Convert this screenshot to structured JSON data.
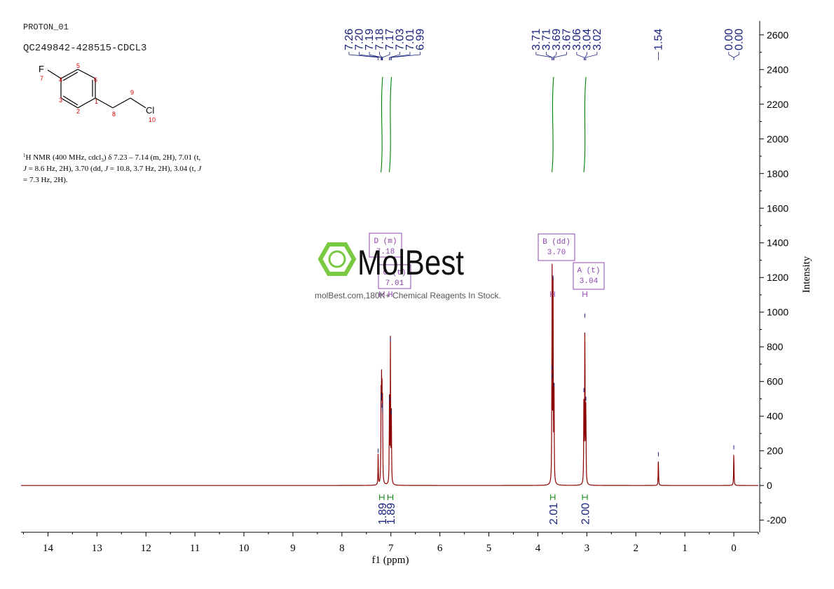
{
  "header": {
    "experiment": "PROTON_01",
    "sample": "QC249842-428515-CDCL3"
  },
  "structure": {
    "atoms": [
      {
        "symbol": "F",
        "number": "7"
      },
      {
        "symbol": "Cl",
        "number": "10"
      }
    ],
    "locants": [
      "1",
      "2",
      "3",
      "4",
      "5",
      "6",
      "8",
      "9"
    ]
  },
  "nmr_summary": {
    "line1": "H NMR (400 MHz, cdcl",
    "line1_sup": "1",
    "line1_sub": "3",
    "line1_rest": ") δ 7.23 – 7.14 (m, 2H), 7.01 (t,",
    "line2_j": "J",
    "line2": " = 8.6 Hz, 2H), 3.70 (dd, ",
    "line2_j2": "J",
    "line2_rest": " = 10.8, 3.7 Hz, 2H), 3.04 (t, ",
    "line2_j3": "J",
    "line3": "= 7.3 Hz, 2H)."
  },
  "watermark": {
    "brand": "MolBest",
    "tagline": "molBest.com,180K+ Chemical Reagents In Stock."
  },
  "colors": {
    "spectrum": "#8b0000",
    "integral": "#008000",
    "peak_label": "#1a237e",
    "multiplet_box": "#8e44ad",
    "axis": "#000000",
    "watermark_green": "#7ac943"
  },
  "chart_data": {
    "type": "line",
    "xlabel": "f1 (ppm)",
    "ylabel": "Intensity",
    "xlim": [
      14.55,
      -0.5
    ],
    "ylim": [
      -270,
      2680
    ],
    "x_ticks": [
      14,
      13,
      12,
      11,
      10,
      9,
      8,
      7,
      6,
      5,
      4,
      3,
      2,
      1,
      0
    ],
    "y_ticks": [
      -200,
      0,
      200,
      400,
      600,
      800,
      1000,
      1200,
      1400,
      1600,
      1800,
      2000,
      2200,
      2400,
      2600
    ],
    "peaks": [
      {
        "ppm": 7.26,
        "height": 180
      },
      {
        "ppm": 7.2,
        "height": 480
      },
      {
        "ppm": 7.19,
        "height": 500
      },
      {
        "ppm": 7.18,
        "height": 440
      },
      {
        "ppm": 7.17,
        "height": 420
      },
      {
        "ppm": 7.03,
        "height": 480
      },
      {
        "ppm": 7.01,
        "height": 820
      },
      {
        "ppm": 6.99,
        "height": 400
      },
      {
        "ppm": 3.71,
        "height": 610
      },
      {
        "ppm": 3.71,
        "height": 660
      },
      {
        "ppm": 3.69,
        "height": 1180
      },
      {
        "ppm": 3.67,
        "height": 560
      },
      {
        "ppm": 3.06,
        "height": 530
      },
      {
        "ppm": 3.04,
        "height": 960
      },
      {
        "ppm": 3.02,
        "height": 480
      },
      {
        "ppm": 1.54,
        "height": 160
      },
      {
        "ppm": 0.0,
        "height": 200
      }
    ],
    "peak_labels": [
      {
        "group": [
          "7.26",
          "7.20",
          "7.19",
          "7.18",
          "7.17",
          "7.03",
          "7.01",
          "6.99"
        ],
        "anchors": [
          7.26,
          7.2,
          7.19,
          7.18,
          7.17,
          7.03,
          7.01,
          6.99
        ]
      },
      {
        "group": [
          "3.71",
          "3.71",
          "3.69",
          "3.67",
          "3.06",
          "3.04",
          "3.02"
        ],
        "anchors": [
          3.71,
          3.71,
          3.69,
          3.67,
          3.06,
          3.04,
          3.02
        ]
      },
      {
        "group": [
          "1.54"
        ],
        "anchors": [
          1.54
        ]
      },
      {
        "group": [
          "0.00",
          "0.00"
        ],
        "anchors": [
          0.0,
          0.0
        ]
      }
    ],
    "integrals": [
      {
        "from": 7.23,
        "to": 7.14,
        "value": "1.89"
      },
      {
        "from": 7.06,
        "to": 6.96,
        "value": "1.89"
      },
      {
        "from": 3.74,
        "to": 3.65,
        "value": "2.01"
      },
      {
        "from": 3.09,
        "to": 2.99,
        "value": "2.00"
      }
    ],
    "multiplets": [
      {
        "label": "D (m)",
        "shift": "7.18",
        "anchor": 7.18,
        "range": [
          7.23,
          7.14
        ]
      },
      {
        "label": "C (t)",
        "shift": "7.01",
        "anchor": 7.01,
        "range": [
          7.04,
          6.98
        ]
      },
      {
        "label": "B (dd)",
        "shift": "3.70",
        "anchor": 3.7,
        "range": [
          3.74,
          3.66
        ]
      },
      {
        "label": "A (t)",
        "shift": "3.04",
        "anchor": 3.04,
        "range": [
          3.08,
          3.0
        ]
      }
    ]
  }
}
